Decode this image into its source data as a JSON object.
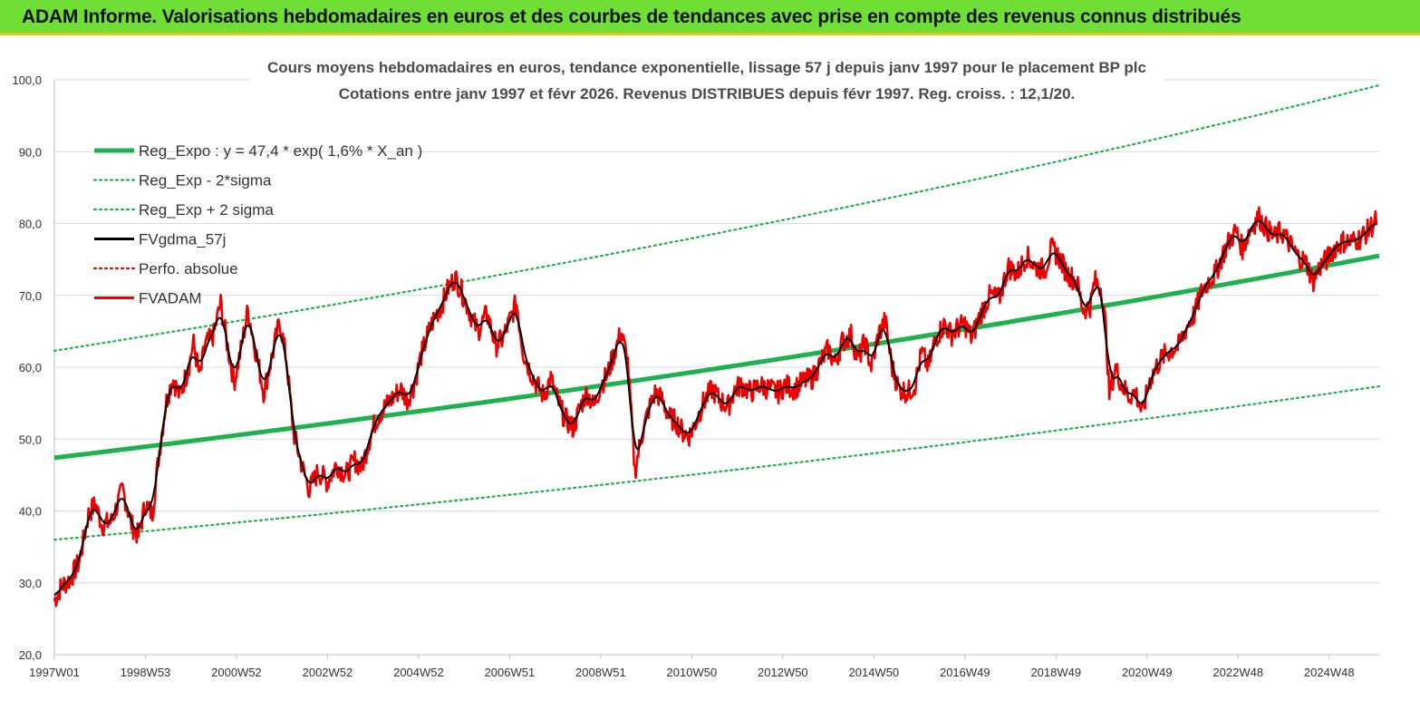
{
  "banner": {
    "text": "ADAM Informe. Valorisations hebdomadaires en euros et des courbes de tendances avec prise en compte des revenus connus distribués"
  },
  "colors": {
    "banner_bg": "#6fdf35",
    "regression": "#1fb04f",
    "sigma_bands": "#1fb04f",
    "moving_average": "#000000",
    "perfo": "#d01010",
    "price": "#ee0000"
  },
  "chart_data": {
    "type": "line",
    "title": "Cours moyens hebdomadaires en euros, tendance exponentielle, lissage 57 j depuis janv 1997  pour le placement BP plc",
    "subtitle": "Cotations entre janv 1997 et févr 2026. Revenus DISTRIBUES depuis févr 1997. Reg. croiss. : 12,1/20.",
    "xlabel": "",
    "ylabel": "",
    "ylim": [
      20,
      100
    ],
    "xlim": [
      1997.0,
      2026.1
    ],
    "yticks": [
      "20,0",
      "30,0",
      "40,0",
      "50,0",
      "60,0",
      "70,0",
      "80,0",
      "90,0",
      "100,0"
    ],
    "xticks": [
      "1997W01",
      "1998W53",
      "2000W52",
      "2002W52",
      "2004W52",
      "2006W51",
      "2008W51",
      "2010W50",
      "2012W50",
      "2014W50",
      "2016W49",
      "2018W49",
      "2020W49",
      "2022W48",
      "2024W48"
    ],
    "grid": "horizontal",
    "legend_position": "top-left",
    "regression": {
      "a": 47.4,
      "rate": 0.016
    },
    "sigma_bands": {
      "lower_at_start": 36.0,
      "upper_at_start": 62.3
    },
    "series": [
      {
        "name": "Reg_Expo : y = 47,4 * exp( 1,6% *  X_an )",
        "style": "thick-solid",
        "color": "#1fb04f"
      },
      {
        "name": "Reg_Exp - 2*sigma",
        "style": "dotted",
        "color": "#1fb04f"
      },
      {
        "name": "Reg_Exp + 2 sigma",
        "style": "dotted",
        "color": "#1fb04f"
      },
      {
        "name": "FVgdma_57j",
        "style": "solid",
        "color": "#000000"
      },
      {
        "name": "Perfo. absolue",
        "style": "dotted",
        "color": "#d01010"
      },
      {
        "name": "FVADAM",
        "style": "solid",
        "color": "#ee0000"
      }
    ],
    "price_points": [
      [
        1997.0,
        27.5
      ],
      [
        1997.15,
        29.5
      ],
      [
        1997.35,
        30.5
      ],
      [
        1997.55,
        33.0
      ],
      [
        1997.75,
        39.5
      ],
      [
        1997.9,
        41.0
      ],
      [
        1998.05,
        38.0
      ],
      [
        1998.25,
        38.5
      ],
      [
        1998.5,
        43.0
      ],
      [
        1998.7,
        38.0
      ],
      [
        1998.85,
        36.5
      ],
      [
        1999.0,
        41.0
      ],
      [
        1999.15,
        39.5
      ],
      [
        1999.3,
        48.0
      ],
      [
        1999.45,
        55.0
      ],
      [
        1999.6,
        58.5
      ],
      [
        1999.75,
        56.0
      ],
      [
        1999.95,
        60.0
      ],
      [
        2000.05,
        63.5
      ],
      [
        2000.2,
        58.5
      ],
      [
        2000.3,
        63.0
      ],
      [
        2000.5,
        64.5
      ],
      [
        2000.65,
        69.0
      ],
      [
        2000.8,
        63.0
      ],
      [
        2000.95,
        58.0
      ],
      [
        2001.1,
        62.5
      ],
      [
        2001.25,
        68.0
      ],
      [
        2001.4,
        63.0
      ],
      [
        2001.6,
        56.5
      ],
      [
        2001.8,
        62.0
      ],
      [
        2001.95,
        66.5
      ],
      [
        2002.1,
        61.0
      ],
      [
        2002.25,
        51.0
      ],
      [
        2002.45,
        46.0
      ],
      [
        2002.6,
        43.0
      ],
      [
        2002.8,
        45.5
      ],
      [
        2003.0,
        44.0
      ],
      [
        2003.2,
        46.5
      ],
      [
        2003.4,
        45.0
      ],
      [
        2003.6,
        47.0
      ],
      [
        2003.75,
        46.0
      ],
      [
        2003.9,
        49.5
      ],
      [
        2004.05,
        52.5
      ],
      [
        2004.2,
        54.0
      ],
      [
        2004.4,
        55.5
      ],
      [
        2004.6,
        57.0
      ],
      [
        2004.75,
        55.5
      ],
      [
        2004.9,
        57.5
      ],
      [
        2005.05,
        61.5
      ],
      [
        2005.2,
        64.5
      ],
      [
        2005.35,
        67.0
      ],
      [
        2005.5,
        68.5
      ],
      [
        2005.65,
        71.0
      ],
      [
        2005.8,
        72.5
      ],
      [
        2005.95,
        70.5
      ],
      [
        2006.1,
        68.0
      ],
      [
        2006.3,
        65.0
      ],
      [
        2006.5,
        67.5
      ],
      [
        2006.7,
        63.0
      ],
      [
        2006.85,
        64.0
      ],
      [
        2007.0,
        66.5
      ],
      [
        2007.15,
        69.0
      ],
      [
        2007.3,
        62.0
      ],
      [
        2007.45,
        59.5
      ],
      [
        2007.6,
        57.5
      ],
      [
        2007.75,
        56.0
      ],
      [
        2007.9,
        58.5
      ],
      [
        2008.05,
        55.5
      ],
      [
        2008.2,
        53.0
      ],
      [
        2008.4,
        51.5
      ],
      [
        2008.55,
        54.5
      ],
      [
        2008.7,
        56.5
      ],
      [
        2008.85,
        54.5
      ],
      [
        2009.0,
        57.5
      ],
      [
        2009.15,
        59.0
      ],
      [
        2009.3,
        62.0
      ],
      [
        2009.45,
        65.0
      ],
      [
        2009.6,
        60.5
      ],
      [
        2009.75,
        45.5
      ],
      [
        2009.9,
        50.5
      ],
      [
        2010.05,
        54.0
      ],
      [
        2010.2,
        56.5
      ],
      [
        2010.35,
        55.5
      ],
      [
        2010.5,
        53.0
      ],
      [
        2010.65,
        52.5
      ],
      [
        2010.8,
        51.0
      ],
      [
        2010.95,
        50.5
      ],
      [
        2011.1,
        52.5
      ],
      [
        2011.25,
        55.0
      ],
      [
        2011.45,
        57.0
      ],
      [
        2011.6,
        55.5
      ],
      [
        2011.8,
        54.5
      ],
      [
        2011.95,
        57.0
      ],
      [
        2012.1,
        57.5
      ],
      [
        2012.3,
        56.5
      ],
      [
        2012.5,
        57.5
      ],
      [
        2012.7,
        57.0
      ],
      [
        2012.9,
        56.5
      ],
      [
        2013.05,
        57.5
      ],
      [
        2013.25,
        57.0
      ],
      [
        2013.45,
        58.0
      ],
      [
        2013.65,
        58.5
      ],
      [
        2013.85,
        61.0
      ],
      [
        2014.0,
        62.5
      ],
      [
        2014.15,
        60.5
      ],
      [
        2014.3,
        63.5
      ],
      [
        2014.5,
        64.5
      ],
      [
        2014.65,
        61.0
      ],
      [
        2014.8,
        63.5
      ],
      [
        2014.95,
        60.0
      ],
      [
        2015.1,
        64.5
      ],
      [
        2015.25,
        66.5
      ],
      [
        2015.4,
        60.0
      ],
      [
        2015.55,
        57.0
      ],
      [
        2015.75,
        56.5
      ],
      [
        2015.9,
        57.5
      ],
      [
        2016.05,
        62.0
      ],
      [
        2016.2,
        60.0
      ],
      [
        2016.35,
        64.0
      ],
      [
        2016.55,
        66.0
      ],
      [
        2016.7,
        64.5
      ],
      [
        2016.85,
        65.5
      ],
      [
        2017.0,
        66.0
      ],
      [
        2017.15,
        64.0
      ],
      [
        2017.35,
        67.5
      ],
      [
        2017.55,
        70.0
      ],
      [
        2017.75,
        69.5
      ],
      [
        2017.95,
        74.0
      ],
      [
        2018.15,
        73.0
      ],
      [
        2018.35,
        75.5
      ],
      [
        2018.55,
        74.0
      ],
      [
        2018.75,
        73.5
      ],
      [
        2018.9,
        76.5
      ],
      [
        2019.05,
        75.5
      ],
      [
        2019.25,
        73.0
      ],
      [
        2019.45,
        72.0
      ],
      [
        2019.6,
        68.0
      ],
      [
        2019.75,
        68.5
      ],
      [
        2019.85,
        72.0
      ],
      [
        2020.0,
        71.0
      ],
      [
        2020.1,
        65.0
      ],
      [
        2020.17,
        56.0
      ],
      [
        2020.3,
        60.0
      ],
      [
        2020.45,
        57.5
      ],
      [
        2020.6,
        56.0
      ],
      [
        2020.75,
        56.5
      ],
      [
        2020.9,
        53.5
      ],
      [
        2021.05,
        58.0
      ],
      [
        2021.2,
        60.0
      ],
      [
        2021.35,
        61.5
      ],
      [
        2021.55,
        62.5
      ],
      [
        2021.7,
        63.0
      ],
      [
        2021.9,
        66.0
      ],
      [
        2022.05,
        67.5
      ],
      [
        2022.2,
        70.5
      ],
      [
        2022.35,
        72.0
      ],
      [
        2022.5,
        73.0
      ],
      [
        2022.65,
        75.5
      ],
      [
        2022.8,
        77.5
      ],
      [
        2022.95,
        79.0
      ],
      [
        2023.1,
        76.5
      ],
      [
        2023.25,
        79.0
      ],
      [
        2023.45,
        81.0
      ],
      [
        2023.6,
        79.5
      ],
      [
        2023.8,
        78.0
      ],
      [
        2023.95,
        79.0
      ],
      [
        2024.1,
        77.5
      ],
      [
        2024.3,
        75.5
      ],
      [
        2024.5,
        74.5
      ],
      [
        2024.65,
        72.0
      ],
      [
        2024.8,
        74.0
      ],
      [
        2024.95,
        75.0
      ],
      [
        2025.1,
        76.5
      ],
      [
        2025.3,
        77.5
      ],
      [
        2025.5,
        77.5
      ],
      [
        2025.7,
        78.0
      ],
      [
        2025.85,
        79.0
      ],
      [
        2026.05,
        80.5
      ]
    ]
  }
}
